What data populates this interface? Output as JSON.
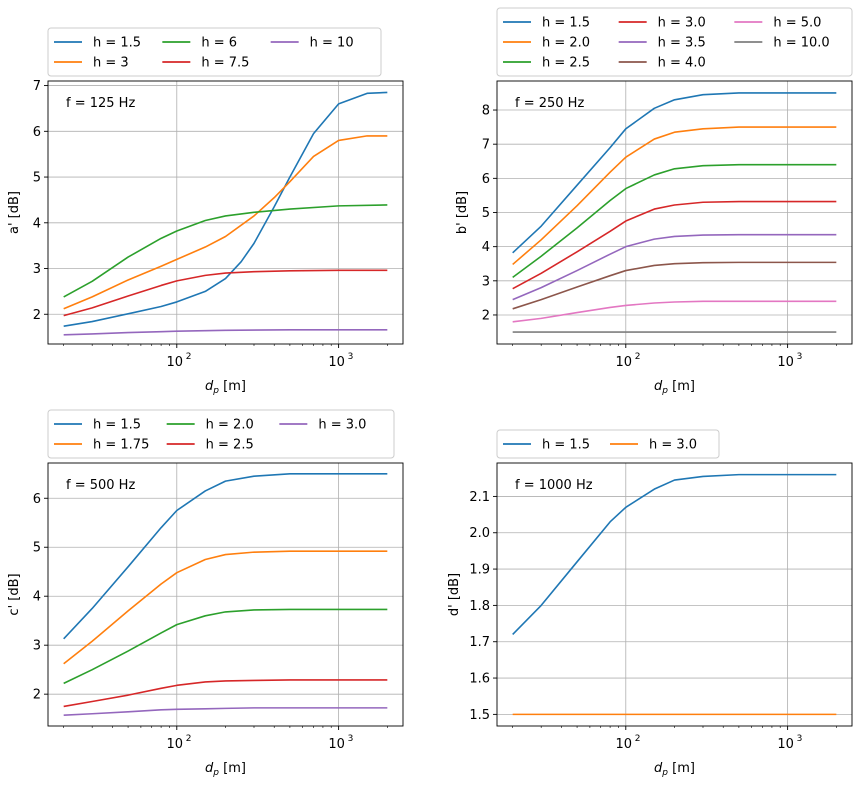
{
  "chart_data": [
    {
      "type": "line",
      "panel": "top-left",
      "annotation": "f = 125 Hz",
      "xlabel": "d_p [m]",
      "xlabel_base": "d",
      "xlabel_sub": "p",
      "xlabel_unit": " [m]",
      "ylabel": "a' [dB]",
      "xscale": "log",
      "xlim": [
        16,
        2500
      ],
      "ylim": [
        1.35,
        7.1
      ],
      "yticks": [
        2,
        3,
        4,
        5,
        6,
        7
      ],
      "xticks": [
        100,
        1000
      ],
      "xtick_labels": [
        {
          "base": "10",
          "exp": "2"
        },
        {
          "base": "10",
          "exp": "3"
        }
      ],
      "legend_ncol": 3,
      "legend_placement": "top-left, above axes",
      "series": [
        {
          "name": "h = 1.5",
          "color": "#1f77b4",
          "x": [
            20,
            30,
            50,
            80,
            100,
            150,
            200,
            250,
            300,
            400,
            500,
            700,
            1000,
            1500,
            2000
          ],
          "values": [
            1.74,
            1.84,
            2.01,
            2.17,
            2.27,
            2.5,
            2.78,
            3.15,
            3.55,
            4.35,
            5.0,
            5.95,
            6.6,
            6.83,
            6.85
          ]
        },
        {
          "name": "h = 3",
          "color": "#ff7f0e",
          "x": [
            20,
            30,
            50,
            80,
            100,
            150,
            200,
            300,
            400,
            500,
            700,
            1000,
            1500,
            2000
          ],
          "values": [
            2.12,
            2.38,
            2.75,
            3.05,
            3.2,
            3.47,
            3.7,
            4.15,
            4.55,
            4.9,
            5.45,
            5.8,
            5.9,
            5.9
          ]
        },
        {
          "name": "h = 6",
          "color": "#2ca02c",
          "x": [
            20,
            30,
            50,
            80,
            100,
            150,
            200,
            300,
            500,
            1000,
            2000
          ],
          "values": [
            2.38,
            2.72,
            3.25,
            3.66,
            3.82,
            4.05,
            4.15,
            4.23,
            4.3,
            4.37,
            4.39
          ]
        },
        {
          "name": "h = 7.5",
          "color": "#d62728",
          "x": [
            20,
            30,
            50,
            80,
            100,
            150,
            200,
            300,
            500,
            1000,
            2000
          ],
          "values": [
            1.97,
            2.14,
            2.4,
            2.63,
            2.73,
            2.85,
            2.9,
            2.93,
            2.95,
            2.96,
            2.96
          ]
        },
        {
          "name": "h = 10",
          "color": "#9467bd",
          "x": [
            20,
            30,
            50,
            80,
            100,
            200,
            500,
            1000,
            2000
          ],
          "values": [
            1.55,
            1.57,
            1.6,
            1.62,
            1.63,
            1.65,
            1.66,
            1.66,
            1.66
          ]
        }
      ]
    },
    {
      "type": "line",
      "panel": "top-right",
      "annotation": "f = 250 Hz",
      "xlabel": "d_p [m]",
      "xlabel_base": "d",
      "xlabel_sub": "p",
      "xlabel_unit": " [m]",
      "ylabel": "b' [dB]",
      "xscale": "log",
      "xlim": [
        16,
        2500
      ],
      "ylim": [
        1.15,
        8.85
      ],
      "yticks": [
        2,
        3,
        4,
        5,
        6,
        7,
        8
      ],
      "xticks": [
        100,
        1000
      ],
      "xtick_labels": [
        {
          "base": "10",
          "exp": "2"
        },
        {
          "base": "10",
          "exp": "3"
        }
      ],
      "legend_ncol": 3,
      "legend_placement": "top-left, above axes",
      "series": [
        {
          "name": "h = 1.5",
          "color": "#1f77b4",
          "x": [
            20,
            30,
            50,
            80,
            100,
            150,
            200,
            300,
            500,
            1000,
            2000
          ],
          "values": [
            3.82,
            4.6,
            5.8,
            6.9,
            7.45,
            8.05,
            8.3,
            8.45,
            8.5,
            8.5,
            8.5
          ]
        },
        {
          "name": "h = 2.0",
          "color": "#ff7f0e",
          "x": [
            20,
            30,
            50,
            80,
            100,
            150,
            200,
            300,
            500,
            1000,
            2000
          ],
          "values": [
            3.48,
            4.2,
            5.2,
            6.18,
            6.62,
            7.15,
            7.35,
            7.45,
            7.5,
            7.5,
            7.5
          ]
        },
        {
          "name": "h = 2.5",
          "color": "#2ca02c",
          "x": [
            20,
            30,
            50,
            80,
            100,
            150,
            200,
            300,
            500,
            1000,
            2000
          ],
          "values": [
            3.1,
            3.72,
            4.55,
            5.35,
            5.7,
            6.1,
            6.28,
            6.37,
            6.4,
            6.4,
            6.4
          ]
        },
        {
          "name": "h = 3.0",
          "color": "#d62728",
          "x": [
            20,
            30,
            50,
            80,
            100,
            150,
            200,
            300,
            500,
            1000,
            2000
          ],
          "values": [
            2.77,
            3.22,
            3.85,
            4.45,
            4.75,
            5.1,
            5.22,
            5.3,
            5.32,
            5.32,
            5.32
          ]
        },
        {
          "name": "h = 3.5",
          "color": "#9467bd",
          "x": [
            20,
            30,
            50,
            80,
            100,
            150,
            200,
            300,
            500,
            1000,
            2000
          ],
          "values": [
            2.45,
            2.8,
            3.3,
            3.78,
            4.0,
            4.22,
            4.3,
            4.34,
            4.35,
            4.35,
            4.35
          ]
        },
        {
          "name": "h = 4.0",
          "color": "#8c564b",
          "x": [
            20,
            30,
            50,
            80,
            100,
            150,
            200,
            300,
            500,
            1000,
            2000
          ],
          "values": [
            2.18,
            2.45,
            2.82,
            3.15,
            3.3,
            3.45,
            3.5,
            3.53,
            3.54,
            3.54,
            3.54
          ]
        },
        {
          "name": "h = 5.0",
          "color": "#e377c2",
          "x": [
            20,
            30,
            50,
            80,
            100,
            150,
            200,
            300,
            500,
            1000,
            2000
          ],
          "values": [
            1.8,
            1.9,
            2.07,
            2.22,
            2.28,
            2.35,
            2.38,
            2.4,
            2.4,
            2.4,
            2.4
          ]
        },
        {
          "name": "h = 10.0",
          "color": "#7f7f7f",
          "x": [
            20,
            2000
          ],
          "values": [
            1.5,
            1.5
          ]
        }
      ]
    },
    {
      "type": "line",
      "panel": "bottom-left",
      "annotation": "f = 500 Hz",
      "xlabel": "d_p [m]",
      "xlabel_base": "d",
      "xlabel_sub": "p",
      "xlabel_unit": " [m]",
      "ylabel": "c' [dB]",
      "xscale": "log",
      "xlim": [
        16,
        2500
      ],
      "ylim": [
        1.35,
        6.72
      ],
      "yticks": [
        2,
        3,
        4,
        5,
        6
      ],
      "xticks": [
        100,
        1000
      ],
      "xtick_labels": [
        {
          "base": "10",
          "exp": "2"
        },
        {
          "base": "10",
          "exp": "3"
        }
      ],
      "legend_ncol": 3,
      "legend_placement": "top-left, above axes",
      "series": [
        {
          "name": "h = 1.5",
          "color": "#1f77b4",
          "x": [
            20,
            30,
            50,
            80,
            100,
            150,
            200,
            300,
            500,
            1000,
            2000
          ],
          "values": [
            3.13,
            3.75,
            4.6,
            5.4,
            5.75,
            6.15,
            6.35,
            6.45,
            6.5,
            6.5,
            6.5
          ]
        },
        {
          "name": "h = 1.75",
          "color": "#ff7f0e",
          "x": [
            20,
            30,
            50,
            80,
            100,
            150,
            200,
            300,
            500,
            1000,
            2000
          ],
          "values": [
            2.62,
            3.08,
            3.7,
            4.25,
            4.48,
            4.75,
            4.85,
            4.9,
            4.92,
            4.92,
            4.92
          ]
        },
        {
          "name": "h = 2.0",
          "color": "#2ca02c",
          "x": [
            20,
            30,
            50,
            80,
            100,
            150,
            200,
            300,
            500,
            1000,
            2000
          ],
          "values": [
            2.22,
            2.5,
            2.88,
            3.25,
            3.42,
            3.6,
            3.68,
            3.72,
            3.73,
            3.73,
            3.73
          ]
        },
        {
          "name": "h = 2.5",
          "color": "#d62728",
          "x": [
            20,
            30,
            50,
            80,
            100,
            150,
            200,
            300,
            500,
            1000,
            2000
          ],
          "values": [
            1.75,
            1.85,
            1.98,
            2.12,
            2.18,
            2.25,
            2.27,
            2.28,
            2.29,
            2.29,
            2.29
          ]
        },
        {
          "name": "h = 3.0",
          "color": "#9467bd",
          "x": [
            20,
            30,
            50,
            80,
            100,
            150,
            200,
            300,
            500,
            1000,
            2000
          ],
          "values": [
            1.57,
            1.6,
            1.64,
            1.68,
            1.69,
            1.7,
            1.71,
            1.72,
            1.72,
            1.72,
            1.72
          ]
        }
      ]
    },
    {
      "type": "line",
      "panel": "bottom-right",
      "annotation": "f = 1000 Hz",
      "xlabel": "d_p [m]",
      "xlabel_base": "d",
      "xlabel_sub": "p",
      "xlabel_unit": " [m]",
      "ylabel": "d' [dB]",
      "xscale": "log",
      "xlim": [
        16,
        2500
      ],
      "ylim": [
        1.468,
        2.192
      ],
      "yticks": [
        1.5,
        1.6,
        1.7,
        1.8,
        1.9,
        2.0,
        2.1
      ],
      "ytick_labels": [
        "1.5",
        "1.6",
        "1.7",
        "1.8",
        "1.9",
        "2.0",
        "2.1"
      ],
      "xticks": [
        100,
        1000
      ],
      "xtick_labels": [
        {
          "base": "10",
          "exp": "2"
        },
        {
          "base": "10",
          "exp": "3"
        }
      ],
      "legend_ncol": 2,
      "legend_placement": "top-left, above axes",
      "series": [
        {
          "name": "h = 1.5",
          "color": "#1f77b4",
          "x": [
            20,
            30,
            50,
            80,
            100,
            150,
            200,
            300,
            500,
            1000,
            2000
          ],
          "values": [
            1.72,
            1.8,
            1.92,
            2.03,
            2.07,
            2.12,
            2.145,
            2.155,
            2.16,
            2.16,
            2.16
          ]
        },
        {
          "name": "h = 3.0",
          "color": "#ff7f0e",
          "x": [
            20,
            2000
          ],
          "values": [
            1.5,
            1.5
          ]
        }
      ]
    }
  ]
}
